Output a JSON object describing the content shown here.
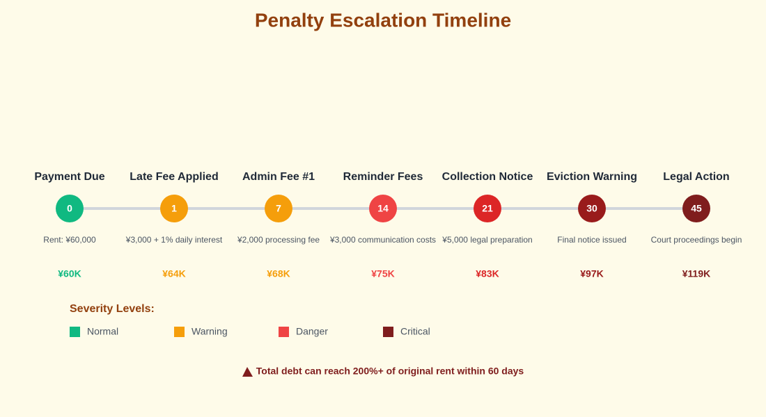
{
  "title": "Penalty Escalation Timeline",
  "stages": [
    {
      "label": "Payment Due",
      "day": 0,
      "description": "Rent: ¥60,000",
      "amount": "¥60K",
      "color": "#10b981"
    },
    {
      "label": "Late Fee Applied",
      "day": 1,
      "description": "¥3,000 + 1% daily interest",
      "amount": "¥64K",
      "color": "#f59e0b"
    },
    {
      "label": "Admin Fee #1",
      "day": 7,
      "description": "¥2,000 processing fee",
      "amount": "¥68K",
      "color": "#f59e0b"
    },
    {
      "label": "Reminder Fees",
      "day": 14,
      "description": "¥3,000 communication costs",
      "amount": "¥75K",
      "color": "#ef4444"
    },
    {
      "label": "Collection Notice",
      "day": 21,
      "description": "¥5,000 legal preparation",
      "amount": "¥83K",
      "color": "#dc2626"
    },
    {
      "label": "Eviction Warning",
      "day": 30,
      "description": "Final notice issued",
      "amount": "¥97K",
      "color": "#991b1b"
    },
    {
      "label": "Legal Action",
      "day": 45,
      "description": "Court proceedings begin",
      "amount": "¥119K",
      "color": "#7f1d1d"
    }
  ],
  "legend": {
    "title": "Severity Levels:",
    "items": [
      {
        "name": "Normal",
        "color": "#10b981"
      },
      {
        "name": "Warning",
        "color": "#f59e0b"
      },
      {
        "name": "Danger",
        "color": "#ef4444"
      },
      {
        "name": "Critical",
        "color": "#7f1d1d"
      }
    ]
  },
  "note": "Total debt can reach 200%+ of original rent within 60 days"
}
